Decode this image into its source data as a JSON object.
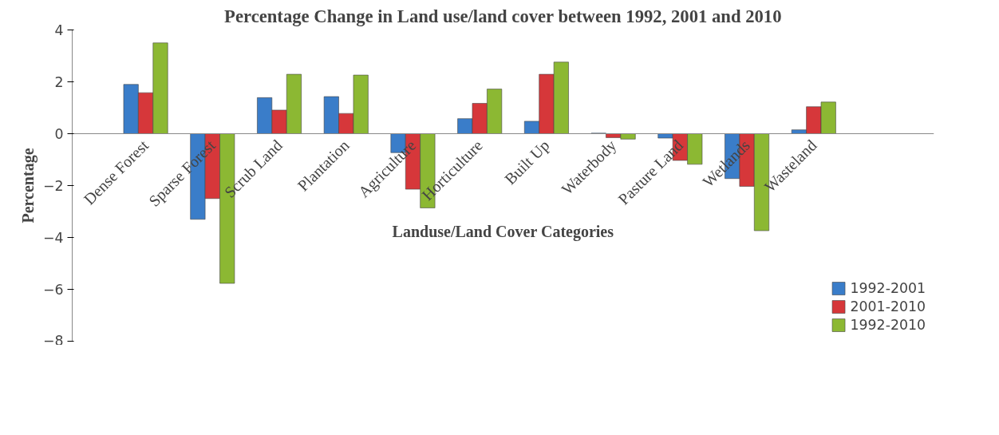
{
  "chart_data": {
    "type": "bar",
    "title": "Percentage Change in Land use/land cover between 1992, 2001 and 2010",
    "xlabel": "Landuse/Land Cover Categories",
    "ylabel": "Percentage",
    "categories": [
      "Dense Forest",
      "Sparse Forest",
      "Scrub Land",
      "Plantation",
      "Agriculture",
      "Horticulture",
      "Built Up",
      "Waterbody",
      "Pasture Land",
      "Wetlands",
      "Wasteland"
    ],
    "series": [
      {
        "name": "1992-2001",
        "color": "#3a7dc9",
        "values": [
          1.9,
          -3.3,
          1.39,
          1.43,
          -0.73,
          0.58,
          0.48,
          0.02,
          -0.17,
          -1.73,
          0.15
        ]
      },
      {
        "name": "2001-2010",
        "color": "#d6373a",
        "values": [
          1.58,
          -2.5,
          0.91,
          0.78,
          -2.14,
          1.17,
          2.29,
          -0.15,
          -1.03,
          -2.03,
          1.04
        ]
      },
      {
        "name": "1992-2010",
        "color": "#8cb833",
        "values": [
          3.5,
          -5.77,
          2.29,
          2.26,
          -2.86,
          1.72,
          2.76,
          -0.21,
          -1.18,
          -3.74,
          1.22
        ]
      }
    ],
    "ylim": [
      -8,
      4
    ],
    "yticks": [
      -8,
      -6,
      -4,
      -2,
      0,
      2,
      4
    ],
    "grid": false,
    "legend": "bottom right"
  }
}
